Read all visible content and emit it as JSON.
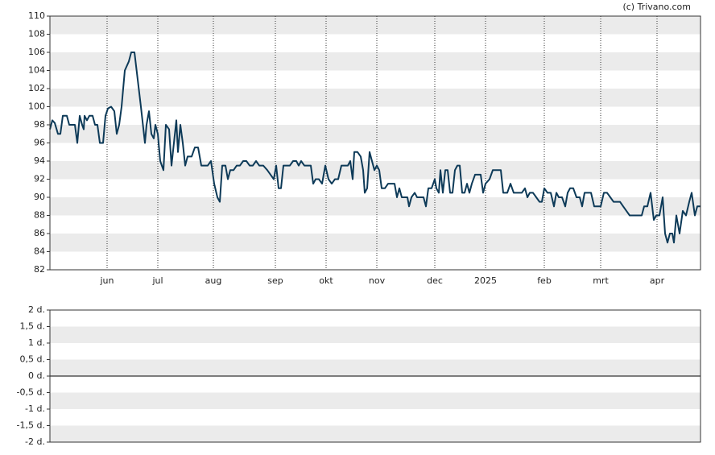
{
  "chart_data": [
    {
      "type": "line",
      "watermark": "(c) Trivano.com",
      "x": [
        0,
        3,
        6,
        10,
        13,
        16,
        21,
        24,
        31,
        34,
        37,
        40,
        42,
        43,
        46,
        49,
        53,
        56,
        59,
        62,
        66,
        69,
        72,
        76,
        80,
        83,
        86,
        89,
        93,
        98,
        101,
        105,
        109,
        113,
        118,
        120,
        123,
        126,
        129,
        131,
        134,
        137,
        141,
        144,
        148,
        151,
        154,
        157,
        159,
        162,
        165,
        168,
        171,
        176,
        180,
        184,
        188,
        192,
        196,
        200,
        204,
        208,
        211,
        214,
        218,
        221,
        224,
        228,
        232,
        236,
        240,
        244,
        248,
        252,
        256,
        260,
        265,
        270,
        274,
        278,
        281,
        284,
        287,
        290,
        294,
        298,
        302,
        306,
        309,
        312,
        316,
        320,
        324,
        327,
        330,
        334,
        338,
        342,
        346,
        350,
        354,
        358,
        362,
        366,
        370,
        373,
        376,
        378,
        382,
        386,
        389,
        391,
        394,
        397,
        400,
        403,
        406,
        409,
        412,
        416,
        420,
        425,
        428,
        431,
        434,
        437,
        441,
        444,
        446,
        449,
        453,
        456,
        460,
        464,
        467,
        470,
        474,
        478,
        480,
        483,
        485,
        488,
        491,
        494,
        497,
        500,
        503,
        506,
        509,
        512,
        515,
        518,
        521,
        524,
        528,
        532,
        535,
        538,
        541,
        546,
        550,
        555,
        560,
        563,
        568,
        572,
        576,
        581,
        586,
        590,
        593,
        596,
        600,
        604,
        608,
        611,
        614,
        618,
        622,
        626,
        629,
        632,
        636,
        640,
        643,
        646,
        650,
        654,
        658,
        661,
        664,
        668,
        672,
        676,
        680,
        684,
        688,
        692,
        696,
        700,
        704,
        708,
        712,
        716,
        720,
        728,
        735,
        738,
        742,
        746,
        750,
        753,
        757,
        761,
        764,
        767,
        770,
        773,
        775,
        778,
        782,
        786,
        790,
        794,
        797,
        801,
        804,
        808
      ],
      "series": [
        {
          "color": "#0d3a58",
          "values": [
            97.5,
            98.5,
            98.2,
            97,
            97,
            99,
            99,
            98,
            98,
            96,
            99,
            98,
            97.5,
            99,
            98.5,
            99,
            99,
            98,
            98,
            96,
            96,
            99,
            99.8,
            100,
            99.5,
            97,
            98,
            100,
            104,
            105,
            106,
            106,
            103,
            100,
            96,
            98,
            99.5,
            97,
            96.5,
            98,
            97,
            94,
            93,
            98,
            97.5,
            93.5,
            96,
            98.5,
            95,
            98,
            96,
            93.5,
            94.5,
            94.5,
            95.5,
            95.5,
            93.5,
            93.5,
            93.5,
            94,
            91.5,
            90,
            89.5,
            93.5,
            93.5,
            92,
            93,
            93,
            93.5,
            93.5,
            94,
            94,
            93.5,
            93.5,
            94,
            93.5,
            93.5,
            93,
            92.5,
            92,
            93.5,
            91,
            91,
            93.5,
            93.5,
            93.5,
            94,
            94,
            93.5,
            94,
            93.5,
            93.5,
            93.5,
            91.5,
            92,
            92,
            91.5,
            93.5,
            92,
            91.5,
            92,
            92,
            93.5,
            93.5,
            93.5,
            94,
            92,
            95,
            95,
            94.5,
            93,
            90.5,
            91,
            95,
            94,
            93,
            93.5,
            93,
            91,
            91,
            91.5,
            91.5,
            91.5,
            90,
            91,
            90,
            90,
            90,
            89,
            90,
            90.5,
            90,
            90,
            90,
            89,
            91,
            91,
            92,
            91,
            90.5,
            93,
            90.5,
            93,
            93,
            90.5,
            90.5,
            93,
            93.5,
            93.5,
            90.5,
            90.5,
            91.5,
            90.5,
            91.5,
            92.5,
            92.5,
            92.5,
            90.5,
            91.5,
            92,
            93,
            93,
            93,
            90.5,
            90.5,
            91.5,
            90.5,
            90.5,
            90.5,
            91,
            90,
            90.5,
            90.5,
            90,
            89.5,
            89.5,
            91,
            90.5,
            90.5,
            89,
            90.5,
            90,
            90,
            89,
            90.5,
            91,
            91,
            90,
            90,
            89,
            90.5,
            90.5,
            90.5,
            89,
            89,
            89,
            90.5,
            90.5,
            90,
            89.5,
            89.5,
            89.5,
            89,
            88.5,
            88,
            88,
            88,
            89,
            89,
            90.5,
            87.5,
            88,
            88,
            90,
            86,
            85,
            86,
            86,
            85,
            88,
            86,
            88.5,
            88,
            89.5,
            90.5,
            88,
            89,
            89
          ]
        }
      ],
      "xlim": [
        0,
        808
      ],
      "xticks": [
        {
          "value": 71,
          "label": "jun"
        },
        {
          "value": 134,
          "label": "jul"
        },
        {
          "value": 203,
          "label": "aug"
        },
        {
          "value": 280,
          "label": "sep"
        },
        {
          "value": 343,
          "label": "okt"
        },
        {
          "value": 406,
          "label": "nov"
        },
        {
          "value": 478,
          "label": "dec"
        },
        {
          "value": 541,
          "label": "2025"
        },
        {
          "value": 614,
          "label": "feb"
        },
        {
          "value": 684,
          "label": "mrt"
        },
        {
          "value": 754,
          "label": "apr"
        }
      ],
      "ylim": [
        82,
        110
      ],
      "yticks": [
        82,
        84,
        86,
        88,
        90,
        92,
        94,
        96,
        98,
        100,
        102,
        104,
        106,
        108,
        110
      ],
      "grid": true
    },
    {
      "type": "bar",
      "ylim": [
        -2,
        2
      ],
      "yticks": [
        {
          "value": -2,
          "label": "-2 d."
        },
        {
          "value": -1.5,
          "label": "-1,5 d."
        },
        {
          "value": -1,
          "label": "-1 d."
        },
        {
          "value": -0.5,
          "label": "-0,5 d."
        },
        {
          "value": 0,
          "label": "0 d."
        },
        {
          "value": 0.5,
          "label": "0,5 d."
        },
        {
          "value": 1,
          "label": "1 d."
        },
        {
          "value": 1.5,
          "label": "1,5 d."
        },
        {
          "value": 2,
          "label": "2 d."
        }
      ],
      "grid": true
    }
  ]
}
